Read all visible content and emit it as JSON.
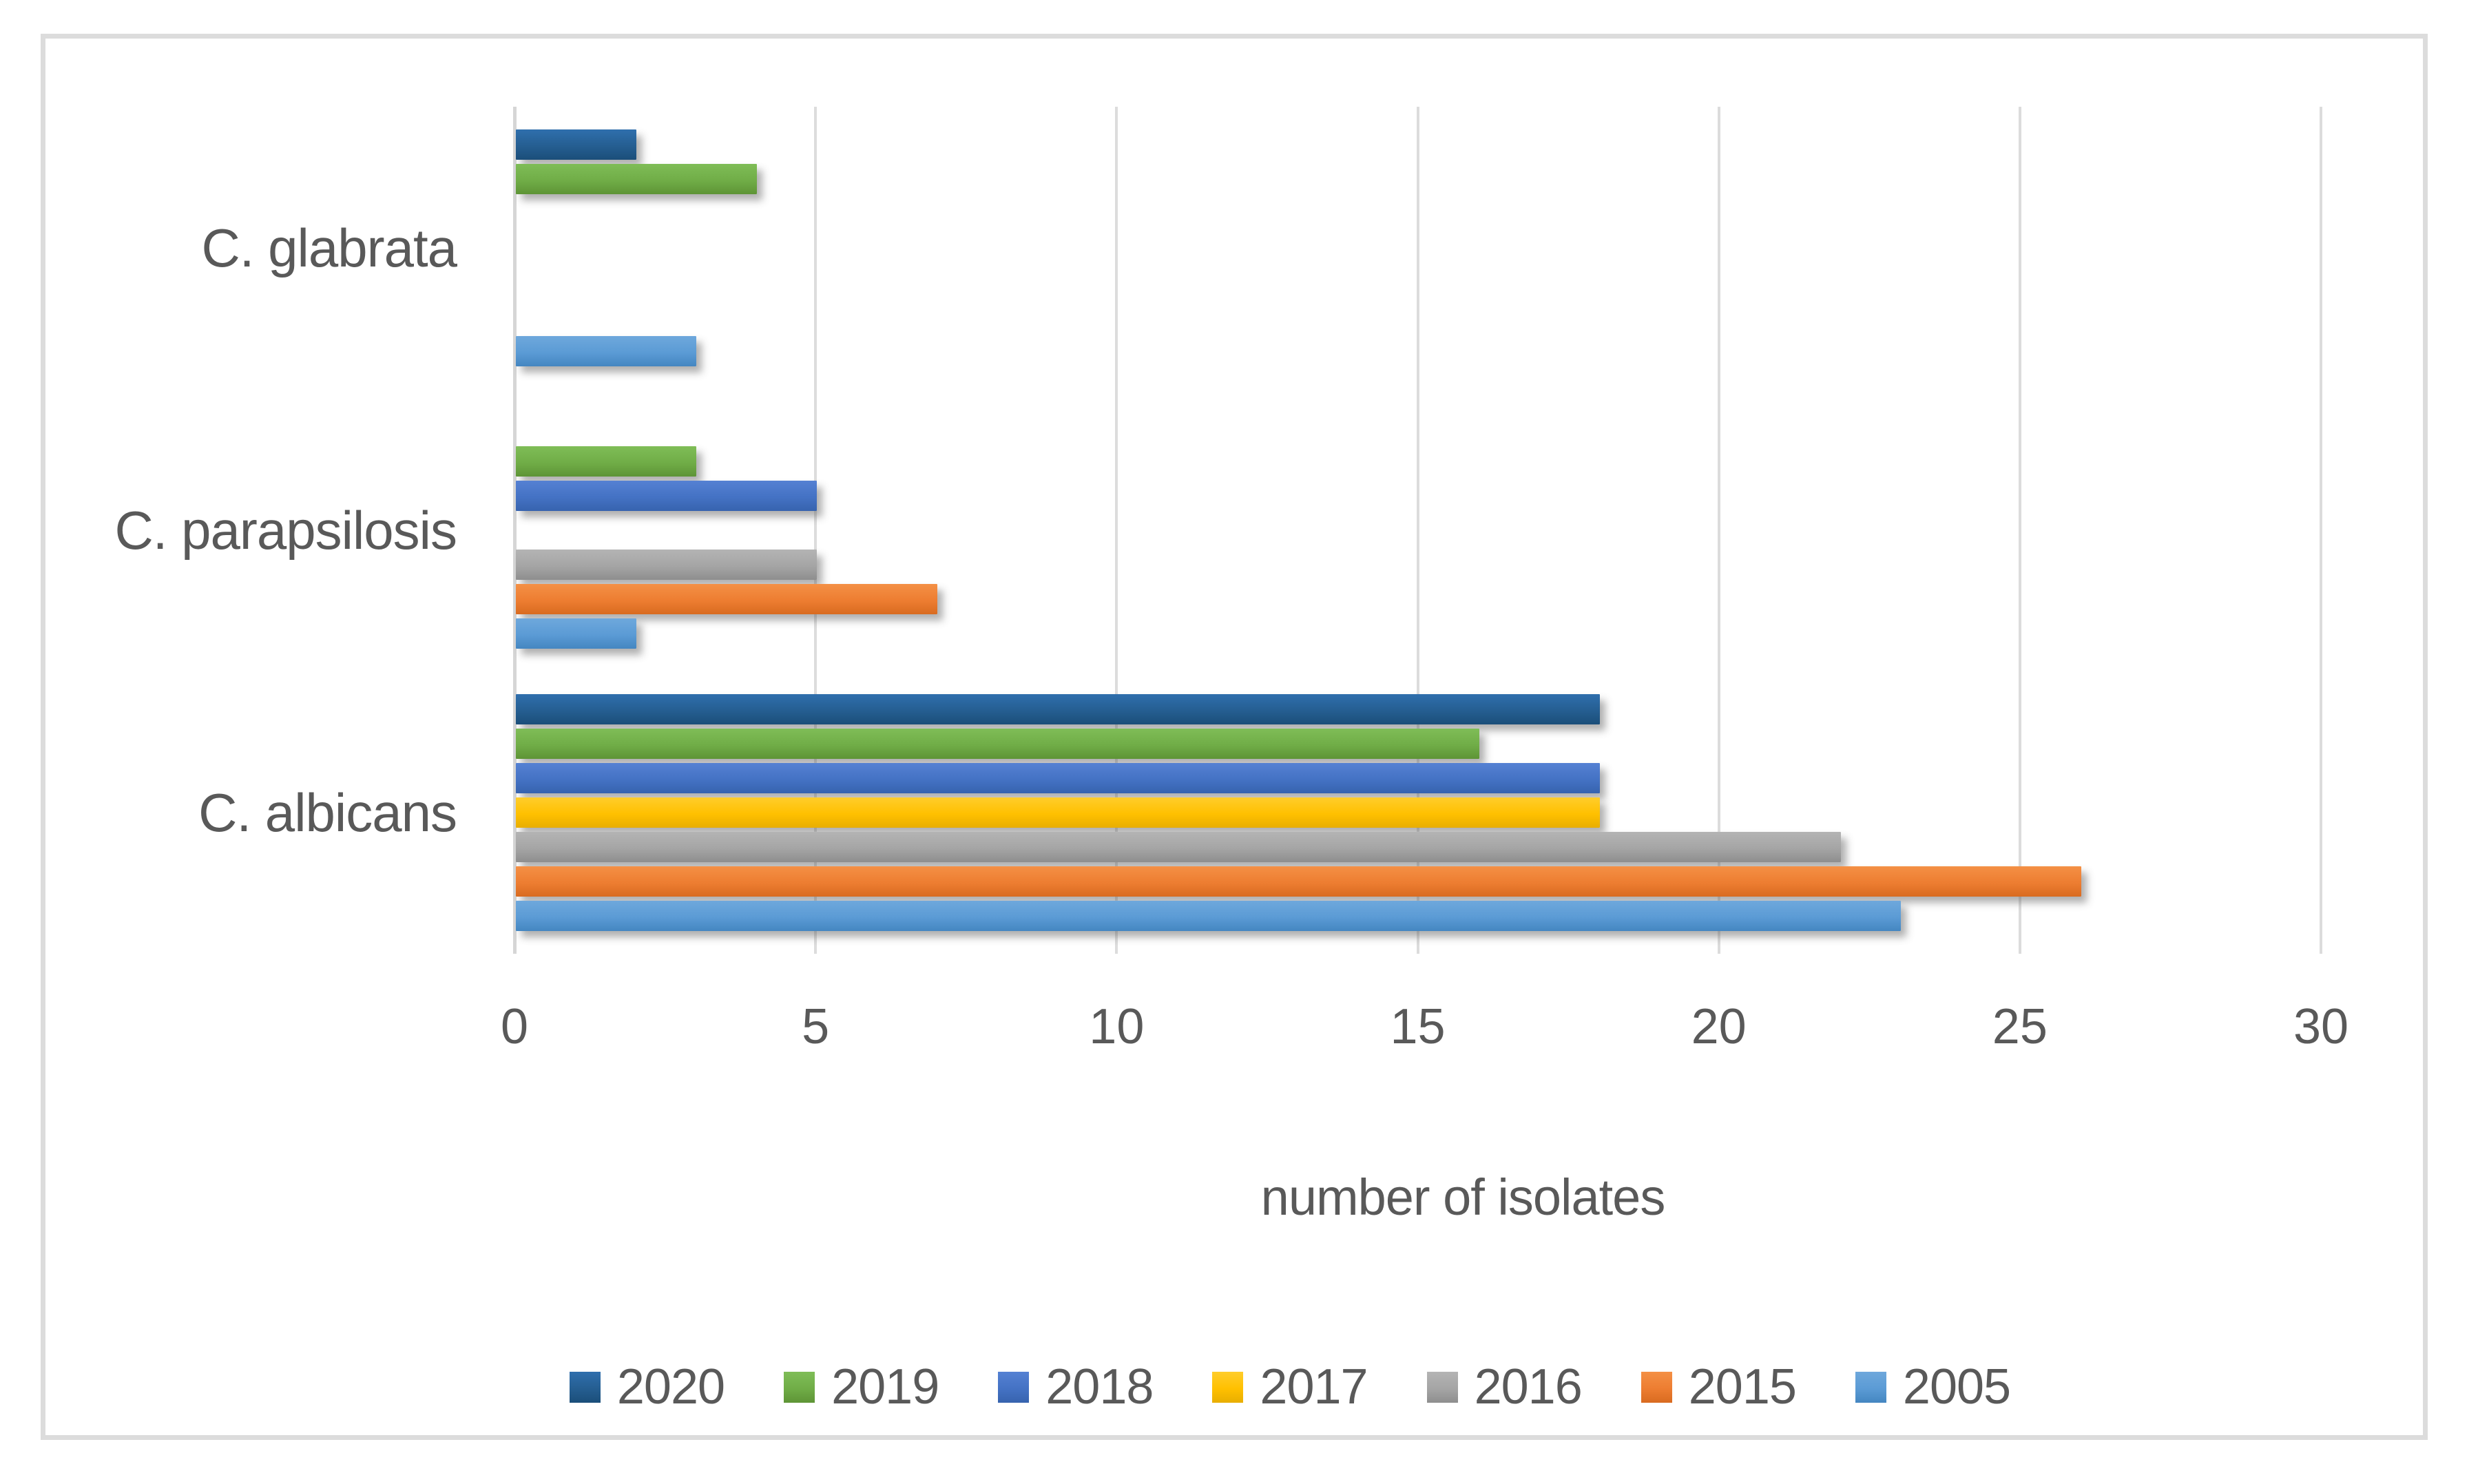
{
  "chart_data": {
    "type": "bar",
    "orientation": "horizontal",
    "title": "",
    "categories": [
      "C. glabrata",
      "C. parapsilosis",
      "C. albicans"
    ],
    "series": [
      {
        "name": "2020",
        "color": "#255E91",
        "color_light": "#2F6FAD",
        "color_dark": "#1B4E79",
        "values": [
          2,
          0,
          18
        ]
      },
      {
        "name": "2019",
        "color": "#70AD47",
        "color_light": "#7FBD57",
        "color_dark": "#5E9436",
        "values": [
          4,
          3,
          16
        ]
      },
      {
        "name": "2018",
        "color": "#4472C4",
        "color_light": "#5581D3",
        "color_dark": "#3763AE",
        "values": [
          0,
          5,
          18
        ]
      },
      {
        "name": "2017",
        "color": "#FFC000",
        "color_light": "#FFCD2B",
        "color_dark": "#E8AE00",
        "values": [
          0,
          0,
          18
        ]
      },
      {
        "name": "2016",
        "color": "#A5A5A5",
        "color_light": "#B4B4B4",
        "color_dark": "#8E8E8E",
        "values": [
          0,
          5,
          22
        ]
      },
      {
        "name": "2015",
        "color": "#ED7D31",
        "color_light": "#F49045",
        "color_dark": "#D96B20",
        "values": [
          0,
          7,
          26
        ]
      },
      {
        "name": "2005",
        "color": "#5B9BD5",
        "color_light": "#6EA8DC",
        "color_dark": "#4486C1",
        "values": [
          3,
          2,
          23
        ]
      }
    ],
    "xlabel": "number of isolates",
    "ylabel": "",
    "xlim": [
      0,
      30
    ],
    "xticks": [
      "0",
      "5",
      "10",
      "15",
      "20",
      "25",
      "30"
    ],
    "grid": true,
    "legend_position": "bottom"
  },
  "frame": {
    "border_color": "#DCDCDC",
    "gridline_color": "#DCDCDC",
    "text_color": "#595959"
  }
}
